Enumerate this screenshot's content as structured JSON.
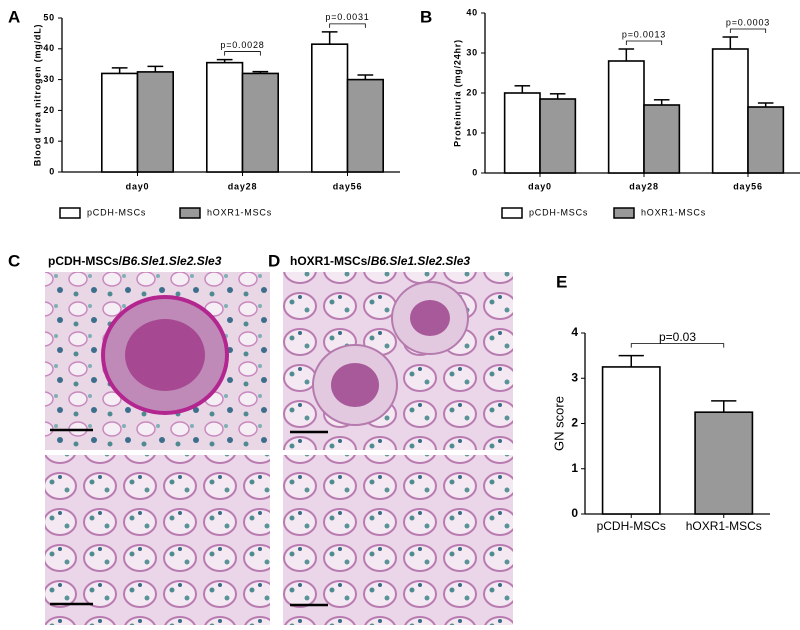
{
  "chart_data": [
    {
      "type": "bar",
      "panel": "A",
      "ylabel": "Blood urea nitrogen (mg/dL)",
      "categories": [
        "day0",
        "day28",
        "day56"
      ],
      "series": [
        {
          "name": "pCDH-MSCs",
          "color": "#ffffff",
          "values": [
            32,
            35.5,
            41.5
          ],
          "errors": [
            1.8,
            1.0,
            4.0
          ]
        },
        {
          "name": "hOXR1-MSCs",
          "color": "#999999",
          "values": [
            32.5,
            32,
            30
          ],
          "errors": [
            1.8,
            0.6,
            1.5
          ]
        }
      ],
      "ylim": [
        0,
        50
      ],
      "yticks": [
        0,
        10,
        20,
        30,
        40,
        50
      ],
      "legend": "bottom",
      "annotations": [
        {
          "text": "p=0.0028",
          "category": "day28"
        },
        {
          "text": "p=0.0031",
          "category": "day56"
        }
      ]
    },
    {
      "type": "bar",
      "panel": "B",
      "ylabel": "Proteinuria (mg/24hr)",
      "categories": [
        "day0",
        "day28",
        "day56"
      ],
      "series": [
        {
          "name": "pCDH-MSCs",
          "color": "#ffffff",
          "values": [
            20,
            28,
            31
          ],
          "errors": [
            1.8,
            3.0,
            3.0
          ]
        },
        {
          "name": "hOXR1-MSCs",
          "color": "#999999",
          "values": [
            18.5,
            17,
            16.5
          ],
          "errors": [
            1.3,
            1.3,
            1.0
          ]
        }
      ],
      "ylim": [
        0,
        40
      ],
      "yticks": [
        0,
        10,
        20,
        30,
        40
      ],
      "legend": "bottom",
      "annotations": [
        {
          "text": "p=0.0013",
          "category": "day28"
        },
        {
          "text": "p=0.0003",
          "category": "day56"
        }
      ]
    },
    {
      "type": "bar",
      "panel": "E",
      "ylabel": "GN score",
      "categories": [
        "pCDH-MSCs",
        "hOXR1-MSCs"
      ],
      "series": [
        {
          "values": [
            3.25,
            2.25
          ],
          "errors": [
            0.25,
            0.25
          ],
          "colors": [
            "#ffffff",
            "#999999"
          ]
        }
      ],
      "ylim": [
        0,
        4
      ],
      "yticks": [
        0,
        1,
        2,
        3,
        4
      ],
      "annotations": [
        {
          "text": "p=0.03",
          "category": "pCDH-MSCs",
          "to": "hOXR1-MSCs"
        }
      ]
    }
  ],
  "images": [
    {
      "panel": "C",
      "title": "pCDH-MSCs/",
      "title_italic": "B6.Sle1.Sle2.Sle3"
    },
    {
      "panel": "D",
      "title": "hOXR1-MSCs/",
      "title_italic": "B6.Sle1.Sle2.Sle3"
    }
  ]
}
